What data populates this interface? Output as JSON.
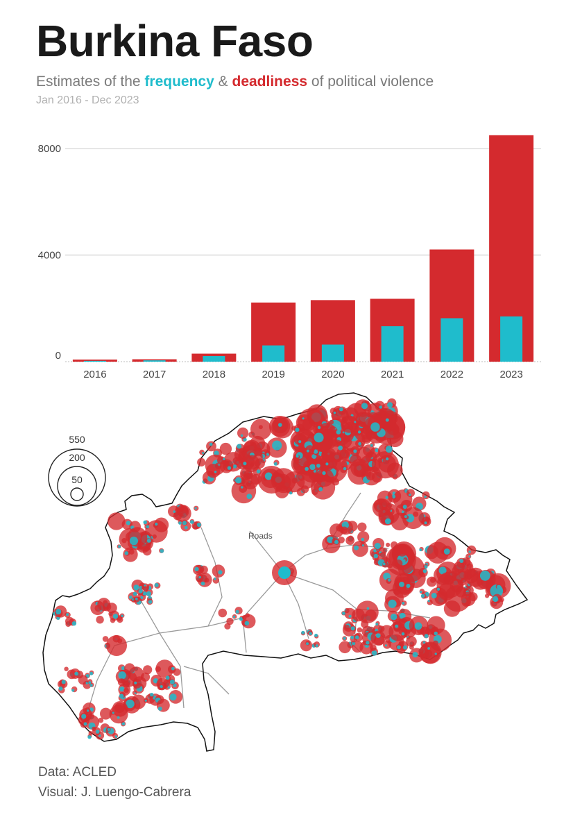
{
  "header": {
    "title": "Burkina Faso",
    "subtitle_prefix": "Estimates of the",
    "subtitle_frequency": "frequency",
    "subtitle_amp": "&",
    "subtitle_deadliness": "deadliness",
    "subtitle_suffix": "of political violence",
    "period": "Jan 2016 - Dec 2023"
  },
  "colors": {
    "frequency": "#1fbccc",
    "deadliness": "#d42a2e",
    "roads": "#9a9a9a",
    "border": "#111111"
  },
  "chart_data": [
    {
      "type": "bar",
      "categories": [
        "2016",
        "2017",
        "2018",
        "2019",
        "2020",
        "2021",
        "2022",
        "2023"
      ],
      "series": [
        {
          "name": "deadliness",
          "values": [
            80,
            90,
            300,
            2220,
            2310,
            2360,
            4210,
            8500
          ]
        },
        {
          "name": "frequency",
          "values": [
            30,
            50,
            210,
            610,
            640,
            1330,
            1630,
            1700
          ]
        }
      ],
      "yticks": [
        "0",
        "4000",
        "8000"
      ],
      "ylim": [
        0,
        8500
      ],
      "grid": true,
      "bar_style": "overlaid"
    },
    {
      "type": "scatter",
      "description_label": "Roads",
      "size_legend": [
        "550",
        "200",
        "50"
      ]
    }
  ],
  "credits": {
    "data": "Data: ACLED",
    "visual": "Visual: J. Luengo-Cabrera"
  }
}
